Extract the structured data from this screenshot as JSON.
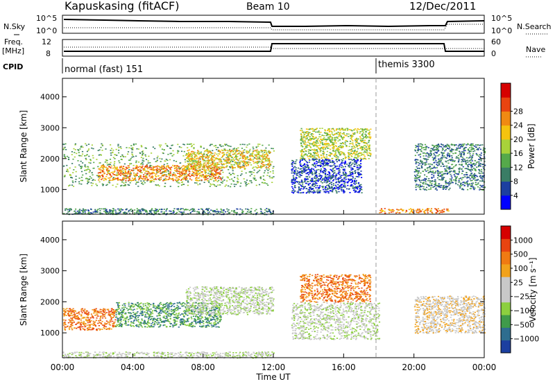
{
  "header": {
    "station": "Kapuskasing (fitACF)",
    "beam": "Beam 10",
    "date": "12/Dec/2011"
  },
  "status_panels": {
    "nsky_label": "N.Sky",
    "nsky_ticks": [
      "10^5",
      "10^0"
    ],
    "nsearch_label": "N.Search",
    "nsearch_ticks": [
      "10^5",
      "10^0"
    ],
    "freq_label_top": "Freq.",
    "freq_label_unit": "[MHz]",
    "freq_ticks": [
      "12",
      "8"
    ],
    "nave_label": "Nave",
    "nave_ticks": [
      "60",
      "0"
    ],
    "cpid_label": "CPID",
    "cpid_segments": [
      {
        "label": "normal (fast) 151",
        "start_hour": 0,
        "end_hour": 18
      },
      {
        "label": "themis 3300",
        "start_hour": 18,
        "end_hour": 24
      }
    ]
  },
  "chart_data": [
    {
      "type": "heatmap",
      "name": "power-panel",
      "ylabel": "Slant Range [km]",
      "xlim_hours": [
        0,
        24
      ],
      "ylim": [
        200,
        4600
      ],
      "yticks": [
        1000,
        2000,
        3000,
        4000
      ],
      "colorbar": {
        "label": "Power [dB]",
        "ticks": [
          4,
          8,
          12,
          16,
          20,
          24,
          28
        ],
        "colors": [
          "#0000ff",
          "#1c3fa0",
          "#3a7d65",
          "#55a94a",
          "#a8d23a",
          "#f5c30f",
          "#f08a12",
          "#e84410",
          "#d60000"
        ]
      },
      "regions": [
        {
          "t0": 0.0,
          "t1": 12.0,
          "r0": 1100,
          "r1": 2500,
          "level": 3
        },
        {
          "t0": 2.0,
          "t1": 9.0,
          "r0": 1300,
          "r1": 1800,
          "level": 6
        },
        {
          "t0": 7.0,
          "t1": 11.8,
          "r0": 1700,
          "r1": 2300,
          "level": 5
        },
        {
          "t0": 0.0,
          "t1": 12.0,
          "r0": 200,
          "r1": 400,
          "level": 2
        },
        {
          "t0": 13.5,
          "t1": 17.5,
          "r0": 2000,
          "r1": 3000,
          "level": 4
        },
        {
          "t0": 13.0,
          "t1": 17.0,
          "r0": 900,
          "r1": 2000,
          "level": 1
        },
        {
          "t0": 18.0,
          "t1": 22.0,
          "r0": 250,
          "r1": 400,
          "level": 6
        },
        {
          "t0": 20.0,
          "t1": 24.0,
          "r0": 1000,
          "r1": 2500,
          "level": 2
        }
      ]
    },
    {
      "type": "heatmap",
      "name": "velocity-panel",
      "ylabel": "Slant Range [km]",
      "xlabel": "Time UT",
      "xlim_hours": [
        0,
        24
      ],
      "ylim": [
        200,
        4600
      ],
      "yticks": [
        1000,
        2000,
        3000,
        4000
      ],
      "xtick_labels": [
        "00:00",
        "04:00",
        "08:00",
        "12:00",
        "16:00",
        "20:00",
        "00:00"
      ],
      "xtick_hours": [
        0,
        4,
        8,
        12,
        16,
        20,
        24
      ],
      "colorbar": {
        "label": "Velocity [m s⁻¹]",
        "ticks": [
          "1000",
          "500",
          "100",
          "25",
          "−25",
          "−100",
          "−500",
          "−1000"
        ],
        "colors": [
          "#1c3fa0",
          "#2e6d8f",
          "#3f9a4a",
          "#8ccf3f",
          "#c8c8c8",
          "#c8c8c8",
          "#f2a21b",
          "#f07a12",
          "#e84410",
          "#d60000"
        ]
      },
      "regions": [
        {
          "t0": 0.0,
          "t1": 3.0,
          "r0": 1100,
          "r1": 1800,
          "level": 7
        },
        {
          "t0": 3.0,
          "t1": 9.0,
          "r0": 1200,
          "r1": 2000,
          "level": 2
        },
        {
          "t0": 7.0,
          "t1": 12.0,
          "r0": 1600,
          "r1": 2500,
          "level": 4
        },
        {
          "t0": 13.5,
          "t1": 17.5,
          "r0": 2000,
          "r1": 2900,
          "level": 7
        },
        {
          "t0": 13.0,
          "t1": 18.0,
          "r0": 800,
          "r1": 2000,
          "level": 4
        },
        {
          "t0": 20.0,
          "t1": 24.0,
          "r0": 1000,
          "r1": 2200,
          "level": 5
        },
        {
          "t0": 0.0,
          "t1": 12.0,
          "r0": 200,
          "r1": 400,
          "level": 4
        }
      ]
    }
  ]
}
